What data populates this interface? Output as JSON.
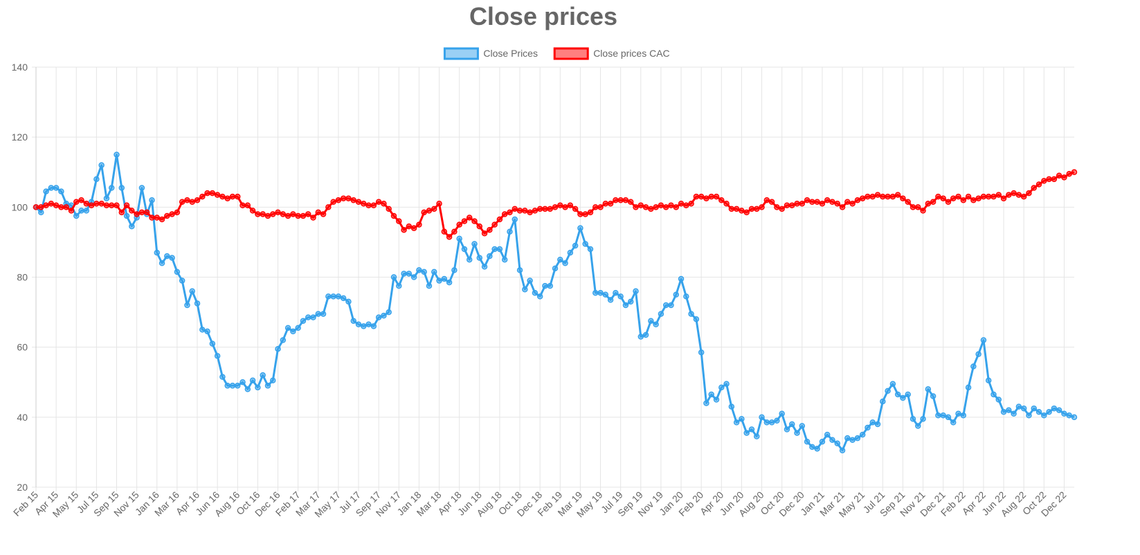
{
  "chart_data": {
    "type": "line",
    "title": "Close prices",
    "legend": "top",
    "grid": true,
    "ylim": [
      20,
      140
    ],
    "yticks": [
      20,
      40,
      60,
      80,
      100,
      120,
      140
    ],
    "categories": [
      "Feb 15",
      null,
      null,
      null,
      "Apr 15",
      null,
      null,
      null,
      "May 15",
      null,
      null,
      null,
      "Jul 15",
      null,
      null,
      null,
      "Sep 15",
      null,
      null,
      null,
      "Nov 15",
      null,
      null,
      null,
      "Jan 16",
      null,
      null,
      null,
      "Mar 16",
      null,
      null,
      null,
      "Apr 16",
      null,
      null,
      null,
      "Jun 16",
      null,
      null,
      null,
      "Aug 16",
      null,
      null,
      null,
      "Oct 16",
      null,
      null,
      null,
      "Dec 16",
      null,
      null,
      null,
      "Feb 17",
      null,
      null,
      null,
      "Mar 17",
      null,
      null,
      null,
      "May 17",
      null,
      null,
      null,
      "Jul 17",
      null,
      null,
      null,
      "Sep 17",
      null,
      null,
      null,
      "Nov 17",
      null,
      null,
      null,
      "Jan 18",
      null,
      null,
      null,
      "Mar 18",
      null,
      null,
      null,
      "Apr 18",
      null,
      null,
      null,
      "Jun 18",
      null,
      null,
      null,
      "Aug 18",
      null,
      null,
      null,
      "Oct 18",
      null,
      null,
      null,
      "Dec 18",
      null,
      null,
      null,
      "Feb 19",
      null,
      null,
      null,
      "Mar 19",
      null,
      null,
      null,
      "May 19",
      null,
      null,
      null,
      "Jul 19",
      null,
      null,
      null,
      "Sep 19",
      null,
      null,
      null,
      "Nov 19",
      null,
      null,
      null,
      "Jan 20",
      null,
      null,
      null,
      "Feb 20",
      null,
      null,
      null,
      "Apr 20",
      null,
      null,
      null,
      "Jun 20",
      null,
      null,
      null,
      "Aug 20",
      null,
      null,
      null,
      "Oct 20",
      null,
      null,
      null,
      "Dec 20",
      null,
      null,
      null,
      "Jan 21",
      null,
      null,
      null,
      "Mar 21",
      null,
      null,
      null,
      "May 21",
      null,
      null,
      null,
      "Jul 21",
      null,
      null,
      null,
      "Sep 21",
      null,
      null,
      null,
      "Nov 21",
      null,
      null,
      null,
      "Dec 21",
      null,
      null,
      null,
      "Feb 22",
      null,
      null,
      null,
      "Apr 22",
      null,
      null,
      null,
      "Jun 22",
      null,
      null,
      null,
      "Aug 22",
      null,
      null,
      null,
      "Oct 22",
      null,
      null,
      null,
      "Dec 22",
      null,
      null
    ],
    "series": [
      {
        "name": "Close Prices",
        "color": "#36a2eb",
        "values": [
          100,
          98.5,
          104.5,
          105.5,
          105.5,
          104.5,
          101,
          100.5,
          97.5,
          99,
          99,
          101.5,
          108,
          112,
          102.5,
          105.5,
          115,
          105.5,
          97.5,
          94.5,
          97,
          105.5,
          98,
          102,
          87,
          84,
          86,
          85.5,
          81.5,
          79,
          72,
          76,
          72.5,
          65,
          64.5,
          61,
          57.5,
          51.5,
          49,
          49,
          49,
          50,
          48,
          50.5,
          48.5,
          52,
          49,
          50.5,
          59.5,
          62,
          65.5,
          64.5,
          65.5,
          67.5,
          68.5,
          68.5,
          69.5,
          69.5,
          74.5,
          74.5,
          74.5,
          74,
          73,
          67.5,
          66.5,
          66,
          66.5,
          66,
          68.5,
          69,
          70,
          80,
          77.5,
          81,
          81,
          80,
          82,
          81.5,
          77.5,
          81.5,
          79,
          79.5,
          78.5,
          82,
          91,
          88,
          85,
          89.5,
          85.5,
          83,
          86,
          88,
          88,
          85,
          93,
          96.5,
          82,
          76.5,
          79,
          75.5,
          74.5,
          77.5,
          77.5,
          82.5,
          85,
          84,
          87,
          89,
          94,
          89.5,
          88,
          75.5,
          75.5,
          75,
          73.5,
          75.5,
          74.5,
          72,
          73,
          76,
          63,
          63.5,
          67.5,
          66.5,
          69.5,
          72,
          72,
          75,
          79.5,
          74.5,
          69.5,
          68,
          58.5,
          44,
          46.5,
          45,
          48.5,
          49.5,
          43,
          38.5,
          39.5,
          35.5,
          36.5,
          34.5,
          40,
          38.5,
          38.5,
          39,
          41,
          36.5,
          38,
          35.5,
          37.5,
          33,
          31.5,
          31,
          33,
          35,
          33.5,
          32.5,
          30.5,
          34,
          33.5,
          34,
          35,
          37,
          38.5,
          38,
          44.5,
          47.5,
          49.5,
          46.5,
          45.5,
          46.5,
          39.5,
          37.5,
          39.5,
          48,
          46,
          40.5,
          40.5,
          40,
          38.5,
          41,
          40.5,
          48.5,
          54.5,
          58,
          62,
          50.5,
          46.5,
          45,
          41.5,
          42,
          41,
          43,
          42.5,
          40.5,
          42.5,
          41.5,
          40.5,
          41.5,
          42.5,
          42,
          41,
          40.5,
          40
        ]
      },
      {
        "name": "Close prices CAC",
        "color": "#ff0000",
        "values": [
          100,
          100,
          100.5,
          101,
          100.5,
          100,
          100,
          99,
          101.5,
          102,
          101,
          100.5,
          101,
          101,
          100.5,
          100.5,
          100.5,
          98.5,
          100.5,
          99,
          98,
          98.5,
          98.5,
          97,
          97,
          96.5,
          97.5,
          98,
          98.5,
          101.5,
          102,
          101.5,
          102,
          103,
          104,
          104,
          103.5,
          103,
          102.5,
          103,
          103,
          100.5,
          100.5,
          99,
          98,
          98,
          97.5,
          98,
          98.5,
          98,
          97.5,
          98,
          97.5,
          97.5,
          98,
          97,
          98.5,
          98,
          100,
          101.5,
          102,
          102.5,
          102.5,
          102,
          101.5,
          101,
          100.5,
          100.5,
          101.5,
          101,
          99.5,
          97.5,
          96,
          93.5,
          94.5,
          94,
          95,
          98.5,
          99,
          99.5,
          101,
          93,
          91.5,
          93,
          95,
          96,
          97,
          96,
          94.5,
          92.5,
          93.5,
          95,
          96.5,
          98,
          98.5,
          99.5,
          99,
          99,
          98.5,
          99,
          99.5,
          99.5,
          99.5,
          100,
          100.5,
          100,
          100.5,
          99.5,
          98,
          98,
          98.5,
          100,
          100,
          101,
          101,
          102,
          102,
          102,
          101.5,
          100,
          100.5,
          100,
          99.5,
          100,
          100.5,
          100,
          100.5,
          100,
          101,
          100.5,
          101,
          103,
          103,
          102.5,
          103,
          103,
          102,
          101,
          99.5,
          99.5,
          99,
          98.5,
          99.5,
          99.5,
          100,
          102,
          101.5,
          100,
          99.5,
          100.5,
          100.5,
          101,
          101,
          102,
          101.5,
          101.5,
          101,
          102,
          101.5,
          101,
          100,
          101.5,
          101,
          102,
          102.5,
          103,
          103,
          103.5,
          103,
          103,
          103,
          103.5,
          102.5,
          101.5,
          100,
          100,
          99,
          101,
          101.5,
          103,
          102.5,
          101.5,
          102.5,
          103,
          102,
          103,
          102,
          102.5,
          103,
          103,
          103,
          103.5,
          102.5,
          103.5,
          104,
          103.5,
          103,
          104,
          105.5,
          106.5,
          107.5,
          108,
          108,
          109,
          108.5,
          109.5,
          110
        ]
      }
    ]
  }
}
